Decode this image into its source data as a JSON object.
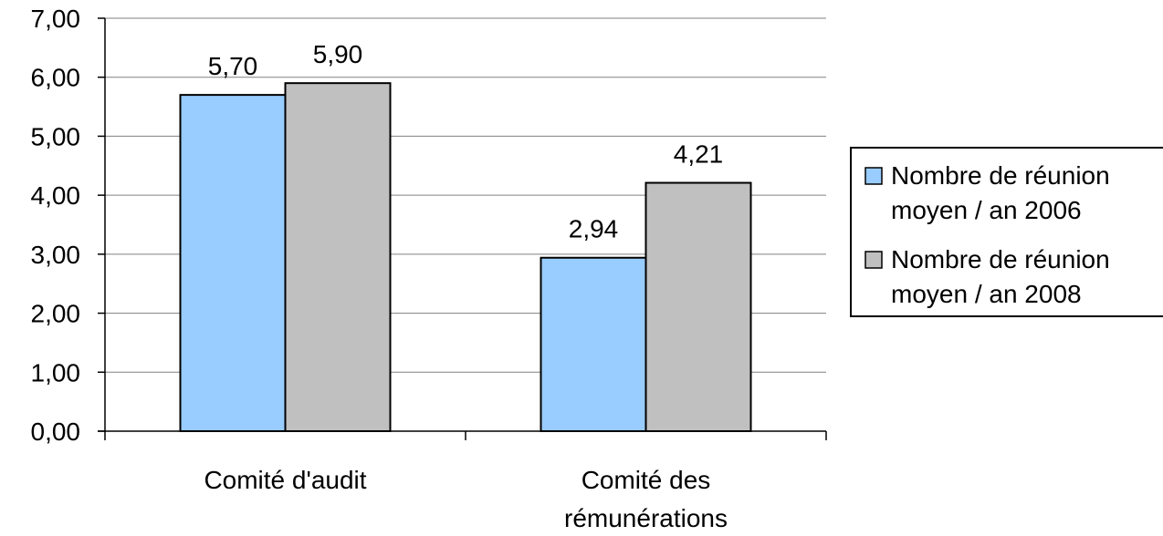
{
  "chart_data": {
    "type": "bar",
    "categories": [
      [
        "Comité d'audit"
      ],
      [
        "Comité des",
        "rémunérations"
      ]
    ],
    "series": [
      {
        "name": [
          "Nombre de réunion",
          "moyen / an 2006"
        ],
        "values": [
          5.7,
          2.94
        ],
        "value_labels": [
          "5,70",
          "2,94"
        ],
        "color": "#99ccff"
      },
      {
        "name": [
          "Nombre de réunion",
          "moyen / an 2008"
        ],
        "values": [
          5.9,
          4.21
        ],
        "value_labels": [
          "5,90",
          "4,21"
        ],
        "color": "#c0c0c0"
      }
    ],
    "ylim": [
      0,
      7
    ],
    "yticks": [
      0,
      1,
      2,
      3,
      4,
      5,
      6,
      7
    ],
    "ytick_labels": [
      "0,00",
      "1,00",
      "2,00",
      "3,00",
      "4,00",
      "5,00",
      "6,00",
      "7,00"
    ],
    "grid": true,
    "grid_color": "#808080",
    "bar_border_color": "#000000",
    "legend_position": "right",
    "title": "",
    "xlabel": "",
    "ylabel": ""
  }
}
